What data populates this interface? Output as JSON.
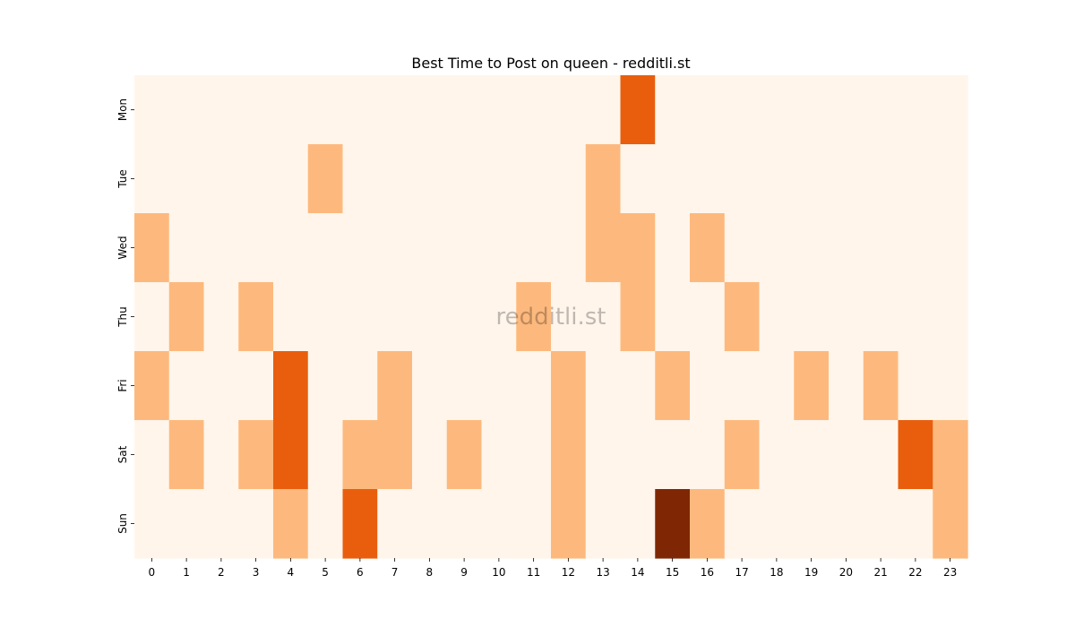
{
  "chart_data": {
    "type": "heatmap",
    "title": "Best Time to Post on queen - redditli.st",
    "watermark": "redditli.st",
    "x_categories": [
      "0",
      "1",
      "2",
      "3",
      "4",
      "5",
      "6",
      "7",
      "8",
      "9",
      "10",
      "11",
      "12",
      "13",
      "14",
      "15",
      "16",
      "17",
      "18",
      "19",
      "20",
      "21",
      "22",
      "23"
    ],
    "y_categories": [
      "Mon",
      "Tue",
      "Wed",
      "Thu",
      "Fri",
      "Sat",
      "Sun"
    ],
    "values": [
      [
        0,
        0,
        0,
        0,
        0,
        0,
        0,
        0,
        0,
        0,
        0,
        0,
        0,
        0,
        2,
        0,
        0,
        0,
        0,
        0,
        0,
        0,
        0,
        0
      ],
      [
        0,
        0,
        0,
        0,
        0,
        1,
        0,
        0,
        0,
        0,
        0,
        0,
        0,
        1,
        0,
        0,
        0,
        0,
        0,
        0,
        0,
        0,
        0,
        0
      ],
      [
        1,
        0,
        0,
        0,
        0,
        0,
        0,
        0,
        0,
        0,
        0,
        0,
        0,
        1,
        1,
        0,
        1,
        0,
        0,
        0,
        0,
        0,
        0,
        0
      ],
      [
        0,
        1,
        0,
        1,
        0,
        0,
        0,
        0,
        0,
        0,
        0,
        1,
        0,
        0,
        1,
        0,
        0,
        1,
        0,
        0,
        0,
        0,
        0,
        0
      ],
      [
        1,
        0,
        0,
        0,
        2,
        0,
        0,
        1,
        0,
        0,
        0,
        0,
        1,
        0,
        0,
        1,
        0,
        0,
        0,
        1,
        0,
        1,
        0,
        0
      ],
      [
        0,
        1,
        0,
        1,
        2,
        0,
        1,
        1,
        0,
        1,
        0,
        0,
        1,
        0,
        0,
        0,
        0,
        1,
        0,
        0,
        0,
        0,
        2,
        1
      ],
      [
        0,
        0,
        0,
        0,
        1,
        0,
        2,
        0,
        0,
        0,
        0,
        0,
        1,
        0,
        0,
        3,
        1,
        0,
        0,
        0,
        0,
        0,
        0,
        1
      ]
    ],
    "value_range": [
      0,
      3
    ],
    "colormap": [
      "#fff5eb",
      "#fdb97d",
      "#e95e0d",
      "#7f2704"
    ],
    "grid": false,
    "legend": "none"
  }
}
